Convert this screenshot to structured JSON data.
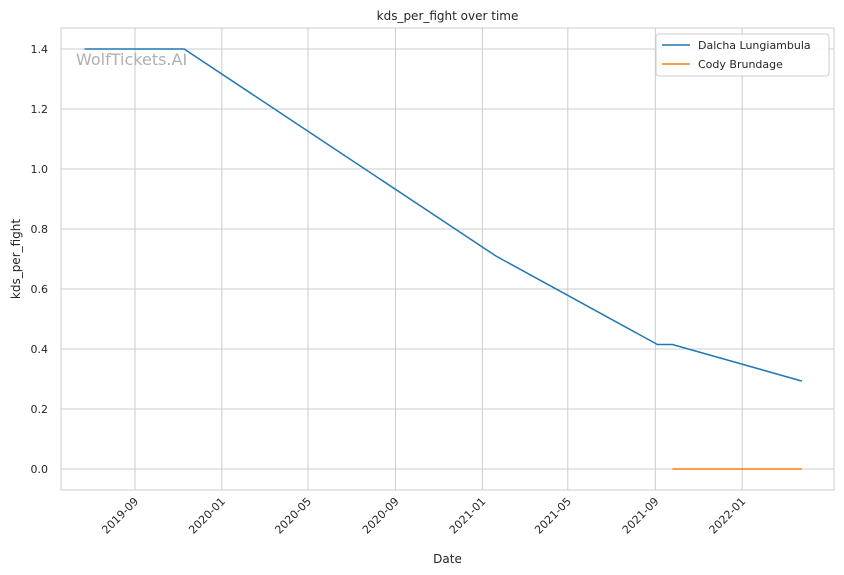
{
  "chart_data": {
    "type": "line",
    "title": "kds_per_fight over time",
    "xlabel": "Date",
    "ylabel": "kds_per_fight",
    "watermark": "WolfTickets.AI",
    "grid": true,
    "legend_position": "top-right",
    "xlim": [
      "2019-05-20",
      "2022-05-10"
    ],
    "ylim": [
      -0.07,
      1.47
    ],
    "x_ticks": [
      "2019-09",
      "2020-01",
      "2020-05",
      "2020-09",
      "2021-01",
      "2021-05",
      "2021-09",
      "2022-01"
    ],
    "y_ticks": [
      "0.0",
      "0.2",
      "0.4",
      "0.6",
      "0.8",
      "1.0",
      "1.2",
      "1.4"
    ],
    "series": [
      {
        "name": "Dalcha Lungiambula",
        "color": "#1f77b4",
        "x": [
          "2019-06-22",
          "2019-11-09",
          "2021-01-20",
          "2021-09-04",
          "2021-09-25",
          "2022-03-26"
        ],
        "y": [
          1.4,
          1.4,
          0.71,
          0.415,
          0.415,
          0.293
        ]
      },
      {
        "name": "Cody Brundage",
        "color": "#ff7f0e",
        "x": [
          "2021-09-25",
          "2022-03-26"
        ],
        "y": [
          0.0,
          0.0
        ]
      }
    ]
  }
}
